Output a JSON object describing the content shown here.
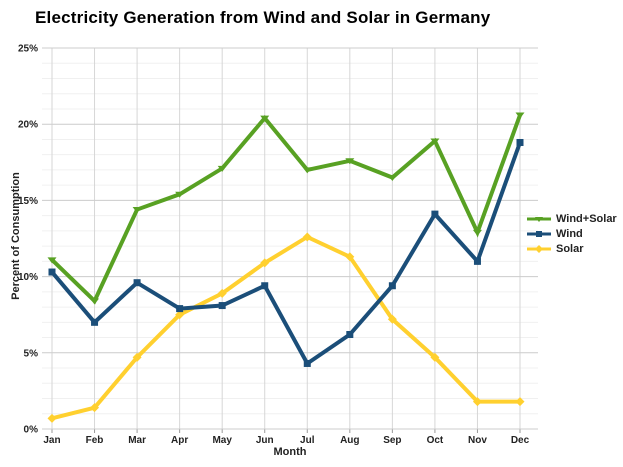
{
  "chart_data": {
    "type": "line",
    "title": "Electricity Generation from Wind and Solar in Germany",
    "xlabel": "Month",
    "ylabel": "Percent of Consumption",
    "categories": [
      "Jan",
      "Feb",
      "Mar",
      "Apr",
      "May",
      "Jun",
      "Jul",
      "Aug",
      "Sep",
      "Oct",
      "Nov",
      "Dec"
    ],
    "ylim": [
      0,
      25
    ],
    "y_major_tick_labels": [
      "0%",
      "5%",
      "10%",
      "15%",
      "20%",
      "25%"
    ],
    "y_major_step": 5,
    "y_minor_step": 1,
    "grid": "on",
    "legend_position": "right",
    "background_color": "#ffffff",
    "major_grid_color": "#cccccc",
    "minor_grid_color": "#f0f0f0",
    "vertical_grid_color": "#d6d6d6",
    "series": [
      {
        "name": "Wind+Solar",
        "color": "#58A123",
        "marker": "triangle-down",
        "values": [
          11.1,
          8.4,
          14.4,
          15.4,
          17.1,
          20.4,
          17.0,
          17.6,
          16.5,
          18.9,
          12.9,
          20.6
        ]
      },
      {
        "name": "Wind",
        "color": "#1B4E79",
        "marker": "square",
        "values": [
          10.3,
          7.0,
          9.6,
          7.9,
          8.1,
          9.4,
          4.3,
          6.2,
          9.4,
          14.1,
          11.0,
          18.8
        ]
      },
      {
        "name": "Solar",
        "color": "#FFD02F",
        "marker": "diamond",
        "values": [
          0.7,
          1.4,
          4.7,
          7.5,
          8.9,
          10.9,
          12.6,
          11.3,
          7.2,
          4.7,
          1.8,
          1.8
        ]
      }
    ]
  }
}
